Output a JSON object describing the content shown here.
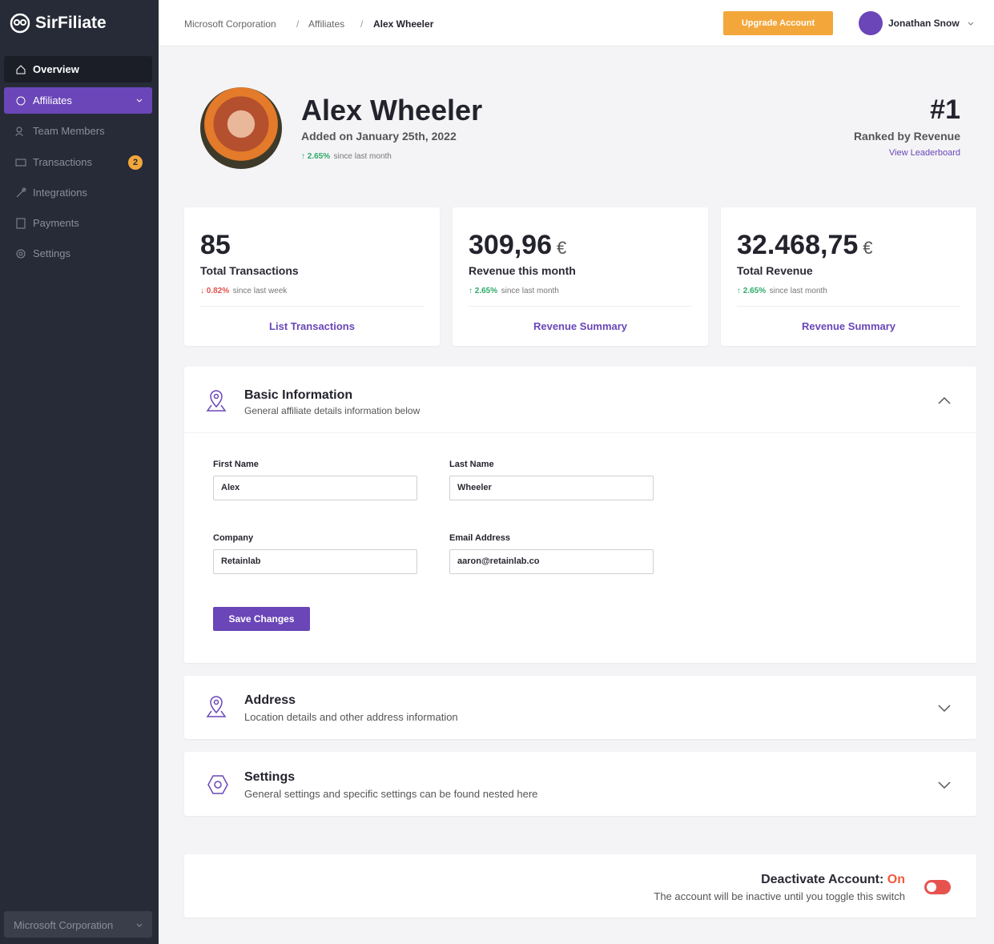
{
  "sidebar": {
    "brand": "SirFiliate",
    "nav": [
      "Overview",
      "Affiliates",
      "Team Members",
      "Transactions",
      "Integrations",
      "Payments",
      "Settings"
    ],
    "transactions_badge": 2,
    "workspace": "Microsoft Corporation"
  },
  "topbar": {
    "breadcrumb": [
      "Microsoft Corporation",
      "Affiliates",
      "Alex Wheeler"
    ],
    "separator": "/",
    "upgrade_button": "Upgrade Account",
    "user": "Jonathan Snow"
  },
  "profile": {
    "name": "Alex Wheeler",
    "added": "Added on January 25th, 2022",
    "change": "2.65%",
    "change_note": "since last month",
    "rank": "#1",
    "rank_label": "Ranked by Revenue",
    "leaderboard_link": "View Leaderboard"
  },
  "stats": [
    {
      "value": "85",
      "label": "Total Transactions",
      "change": "0.82%",
      "change_note": "since last week",
      "link": "List Transactions"
    },
    {
      "value": "309,96",
      "currency": "€",
      "label": "Revenue this month",
      "change": "2.65%",
      "change_note": "since last month",
      "link": "Revenue Summary"
    },
    {
      "value": "32.468,75",
      "currency": "€",
      "label": "Total Revenue",
      "change": "2.65%",
      "change_note": "since last month",
      "link": "Revenue Summary"
    }
  ],
  "basic_information": {
    "title": "Basic Information",
    "subtitle": "General affiliate details information below",
    "fields": [
      {
        "label": "First Name",
        "value": "Alex"
      },
      {
        "label": "Last Name",
        "value": "Wheeler"
      },
      {
        "label": "Company",
        "value": "Retainlab"
      },
      {
        "label": "Email Address",
        "value": "aaron@retainlab.co"
      }
    ],
    "save_button": "Save Changes"
  },
  "address": {
    "title": "Address",
    "subtitle": "Location details and other address information"
  },
  "settings": {
    "title": "Settings",
    "subtitle": "General settings and specific settings can be found nested here"
  },
  "deactivate": {
    "title": "Deactivate Account:",
    "state": "On",
    "note": "The account will be inactive until you toggle this switch"
  }
}
